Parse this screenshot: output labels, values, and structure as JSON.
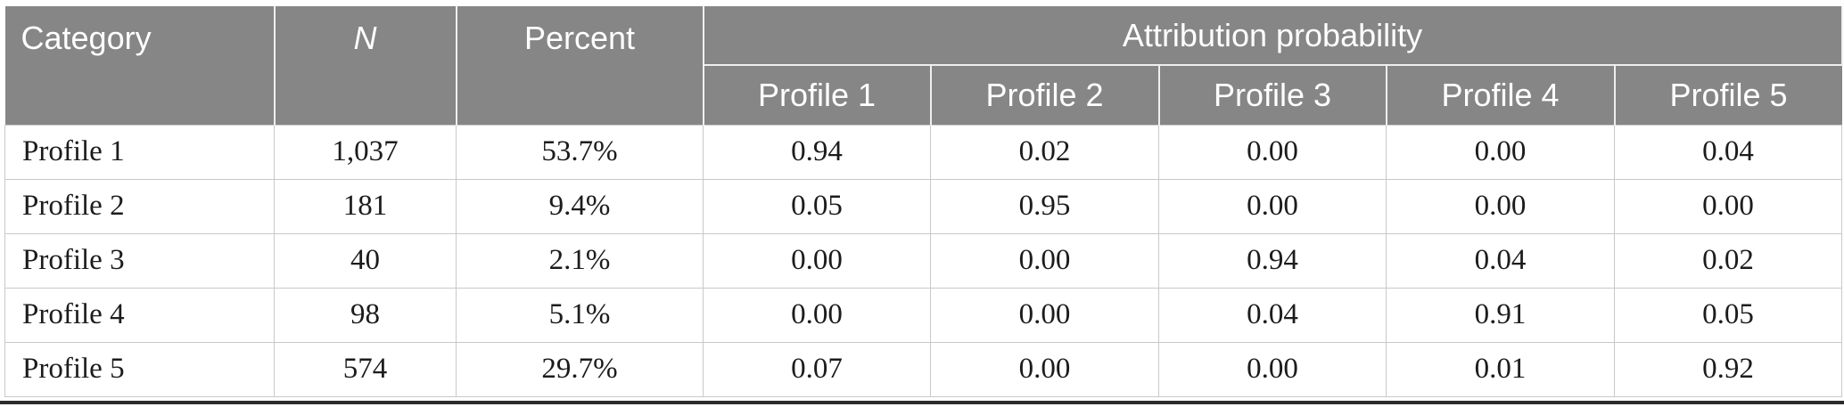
{
  "table": {
    "header": {
      "category": "Category",
      "n": "N",
      "percent": "Percent",
      "attribution": "Attribution probability",
      "profiles": [
        "Profile 1",
        "Profile 2",
        "Profile 3",
        "Profile 4",
        "Profile 5"
      ]
    },
    "rows": [
      {
        "category": "Profile 1",
        "n": "1,037",
        "percent": "53.7%",
        "p": [
          "0.94",
          "0.02",
          "0.00",
          "0.00",
          "0.04"
        ]
      },
      {
        "category": "Profile 2",
        "n": "181",
        "percent": "9.4%",
        "p": [
          "0.05",
          "0.95",
          "0.00",
          "0.00",
          "0.00"
        ]
      },
      {
        "category": "Profile 3",
        "n": "40",
        "percent": "2.1%",
        "p": [
          "0.00",
          "0.00",
          "0.94",
          "0.04",
          "0.02"
        ]
      },
      {
        "category": "Profile 4",
        "n": "98",
        "percent": "5.1%",
        "p": [
          "0.00",
          "0.00",
          "0.04",
          "0.91",
          "0.05"
        ]
      },
      {
        "category": "Profile 5",
        "n": "574",
        "percent": "29.7%",
        "p": [
          "0.07",
          "0.00",
          "0.00",
          "0.01",
          "0.92"
        ]
      }
    ],
    "colors": {
      "header_bg": "#868686",
      "header_text": "#ffffff",
      "header_grid": "#efefef",
      "body_text": "#1c1c1c",
      "body_grid": "#c9c9c9",
      "bottom_rule": "#2b2b2b"
    }
  }
}
